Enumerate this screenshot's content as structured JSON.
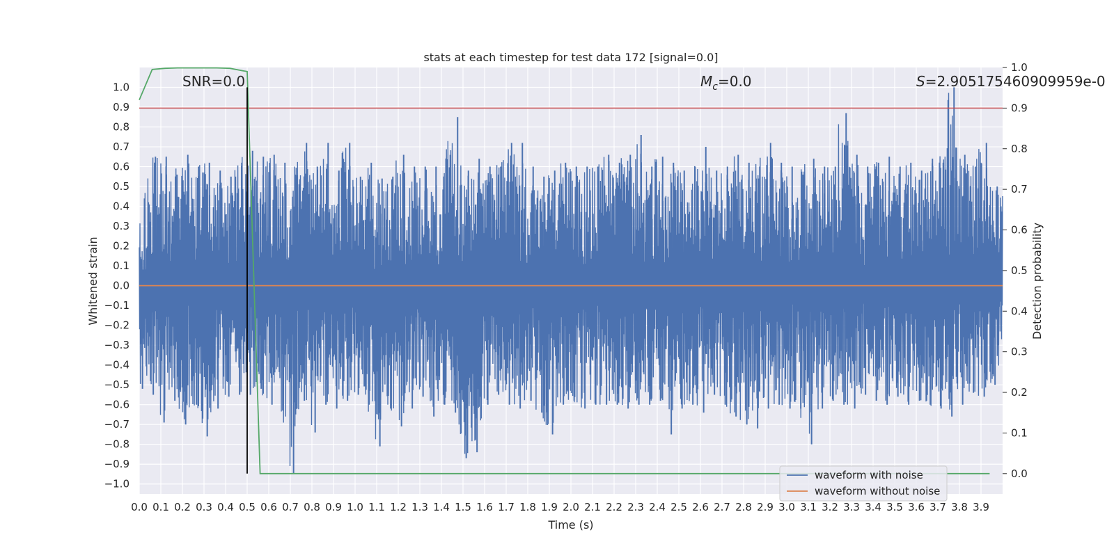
{
  "chart_data": {
    "type": "line",
    "title": "stats at each timestep for test data 172 [signal=0.0]",
    "xlabel": "Time (s)",
    "ylabel": "Whitened strain",
    "y2label": "Detection probability",
    "xlim": [
      0.0,
      4.0
    ],
    "ylim": [
      -1.05,
      1.1
    ],
    "y2lim": [
      -0.05,
      1.0
    ],
    "x_ticks": [
      "0.0",
      "0.1",
      "0.2",
      "0.3",
      "0.4",
      "0.5",
      "0.6",
      "0.7",
      "0.8",
      "0.9",
      "1.0",
      "1.1",
      "1.2",
      "1.3",
      "1.4",
      "1.5",
      "1.6",
      "1.7",
      "1.8",
      "1.9",
      "2.0",
      "2.1",
      "2.2",
      "2.3",
      "2.4",
      "2.5",
      "2.6",
      "2.7",
      "2.8",
      "2.9",
      "3.0",
      "3.1",
      "3.2",
      "3.3",
      "3.4",
      "3.5",
      "3.6",
      "3.7",
      "3.8",
      "3.9"
    ],
    "y_ticks": [
      "1.0",
      "0.9",
      "0.8",
      "0.7",
      "0.6",
      "0.5",
      "0.4",
      "0.3",
      "0.2",
      "0.1",
      "0.0",
      "−0.1",
      "−0.2",
      "−0.3",
      "−0.4",
      "−0.5",
      "−0.6",
      "−0.7",
      "−0.8",
      "−0.9",
      "−1.0"
    ],
    "y2_ticks": [
      "1.0",
      "0.9",
      "0.8",
      "0.7",
      "0.6",
      "0.5",
      "0.4",
      "0.3",
      "0.2",
      "0.1",
      "0.0"
    ],
    "annotations": {
      "snr": "SNR=0.0",
      "mc_symbol": "M",
      "mc_sub": "c",
      "mc_value": "=0.0",
      "s_symbol": "S",
      "s_value": "=2.905175460909959e-0"
    },
    "legend": {
      "placement": "lower-right",
      "entries": [
        "waveform with noise",
        "waveform without noise"
      ]
    },
    "noise_envelope": {
      "x": [
        0.0,
        0.05,
        0.1,
        0.15,
        0.2,
        0.25,
        0.3,
        0.35,
        0.4,
        0.45,
        0.5,
        0.55,
        0.6,
        0.65,
        0.7,
        0.75,
        0.8,
        0.85,
        0.9,
        0.95,
        1.0,
        1.05,
        1.1,
        1.15,
        1.2,
        1.25,
        1.3,
        1.35,
        1.4,
        1.45,
        1.5,
        1.55,
        1.6,
        1.65,
        1.7,
        1.75,
        1.8,
        1.85,
        1.9,
        1.95,
        2.0,
        2.05,
        2.1,
        2.15,
        2.2,
        2.25,
        2.3,
        2.35,
        2.4,
        2.45,
        2.5,
        2.55,
        2.6,
        2.65,
        2.7,
        2.75,
        2.8,
        2.85,
        2.9,
        2.95,
        3.0,
        3.05,
        3.1,
        3.15,
        3.2,
        3.25,
        3.3,
        3.35,
        3.4,
        3.45,
        3.5,
        3.55,
        3.6,
        3.65,
        3.7,
        3.75,
        3.8,
        3.85,
        3.9,
        3.95,
        4.0
      ],
      "max": [
        0.33,
        0.65,
        0.65,
        0.56,
        0.66,
        0.6,
        0.62,
        0.58,
        0.55,
        0.62,
        0.68,
        0.65,
        0.66,
        0.62,
        0.56,
        0.72,
        0.6,
        0.72,
        0.58,
        0.72,
        0.55,
        0.62,
        0.54,
        0.55,
        0.66,
        0.6,
        0.6,
        0.6,
        0.58,
        0.85,
        0.58,
        0.64,
        0.6,
        0.6,
        0.72,
        0.72,
        0.6,
        0.55,
        0.58,
        0.62,
        0.6,
        0.6,
        0.6,
        0.66,
        0.62,
        0.66,
        0.76,
        0.6,
        0.65,
        0.62,
        0.58,
        0.6,
        0.7,
        0.58,
        0.6,
        0.66,
        0.62,
        0.6,
        0.72,
        0.62,
        0.6,
        0.56,
        0.64,
        0.6,
        0.6,
        0.87,
        0.66,
        0.6,
        0.62,
        0.65,
        0.6,
        0.62,
        0.58,
        0.64,
        0.62,
        1.0,
        0.66,
        0.6,
        0.72,
        0.5,
        0.48
      ],
      "min": [
        -0.52,
        -0.55,
        -0.69,
        -0.58,
        -0.7,
        -0.6,
        -0.76,
        -0.62,
        -0.56,
        -0.55,
        -0.55,
        -0.52,
        -0.6,
        -0.63,
        -0.95,
        -0.58,
        -0.74,
        -0.6,
        -0.62,
        -0.58,
        -0.55,
        -0.6,
        -0.81,
        -0.62,
        -0.71,
        -0.62,
        -0.56,
        -0.66,
        -0.6,
        -0.64,
        -0.87,
        -0.84,
        -0.6,
        -0.55,
        -0.6,
        -0.62,
        -0.58,
        -0.64,
        -0.75,
        -0.6,
        -0.58,
        -0.62,
        -0.6,
        -0.6,
        -0.6,
        -0.62,
        -0.6,
        -0.6,
        -0.58,
        -0.75,
        -0.62,
        -0.6,
        -0.64,
        -0.55,
        -0.6,
        -0.66,
        -0.7,
        -0.72,
        -0.62,
        -0.6,
        -0.62,
        -0.62,
        -0.8,
        -0.62,
        -0.58,
        -0.6,
        -0.62,
        -0.55,
        -0.58,
        -0.6,
        -0.56,
        -0.6,
        -0.58,
        -0.6,
        -0.62,
        -0.66,
        -0.6,
        -0.54,
        -0.56,
        -0.5,
        -0.35
      ]
    },
    "series": [
      {
        "name": "waveform without noise",
        "color": "#dd8452",
        "x": [
          0.0,
          4.0
        ],
        "y": [
          0.0,
          0.0
        ]
      },
      {
        "name": "detection probability",
        "axis": "right",
        "color": "#55a868",
        "x": [
          0.0,
          0.06,
          0.12,
          0.18,
          0.24,
          0.3,
          0.36,
          0.42,
          0.48,
          0.5,
          0.56,
          0.62,
          1.0,
          2.0,
          3.0,
          3.94
        ],
        "y": [
          0.92,
          0.995,
          0.998,
          0.999,
          0.999,
          0.999,
          0.999,
          0.998,
          0.992,
          0.99,
          0.0,
          0.0,
          0.0,
          0.0,
          0.0,
          0.0
        ]
      }
    ],
    "reference_lines": [
      {
        "orientation": "horizontal",
        "axis": "right",
        "value": 0.9,
        "color": "#c44e52"
      },
      {
        "orientation": "vertical",
        "value": 0.5,
        "color": "#000000"
      }
    ],
    "grid": true,
    "colors": {
      "noise": "#4c72b0",
      "clean": "#dd8452",
      "probability": "#55a868",
      "threshold": "#c44e52",
      "background": "#eaeaf2"
    }
  }
}
